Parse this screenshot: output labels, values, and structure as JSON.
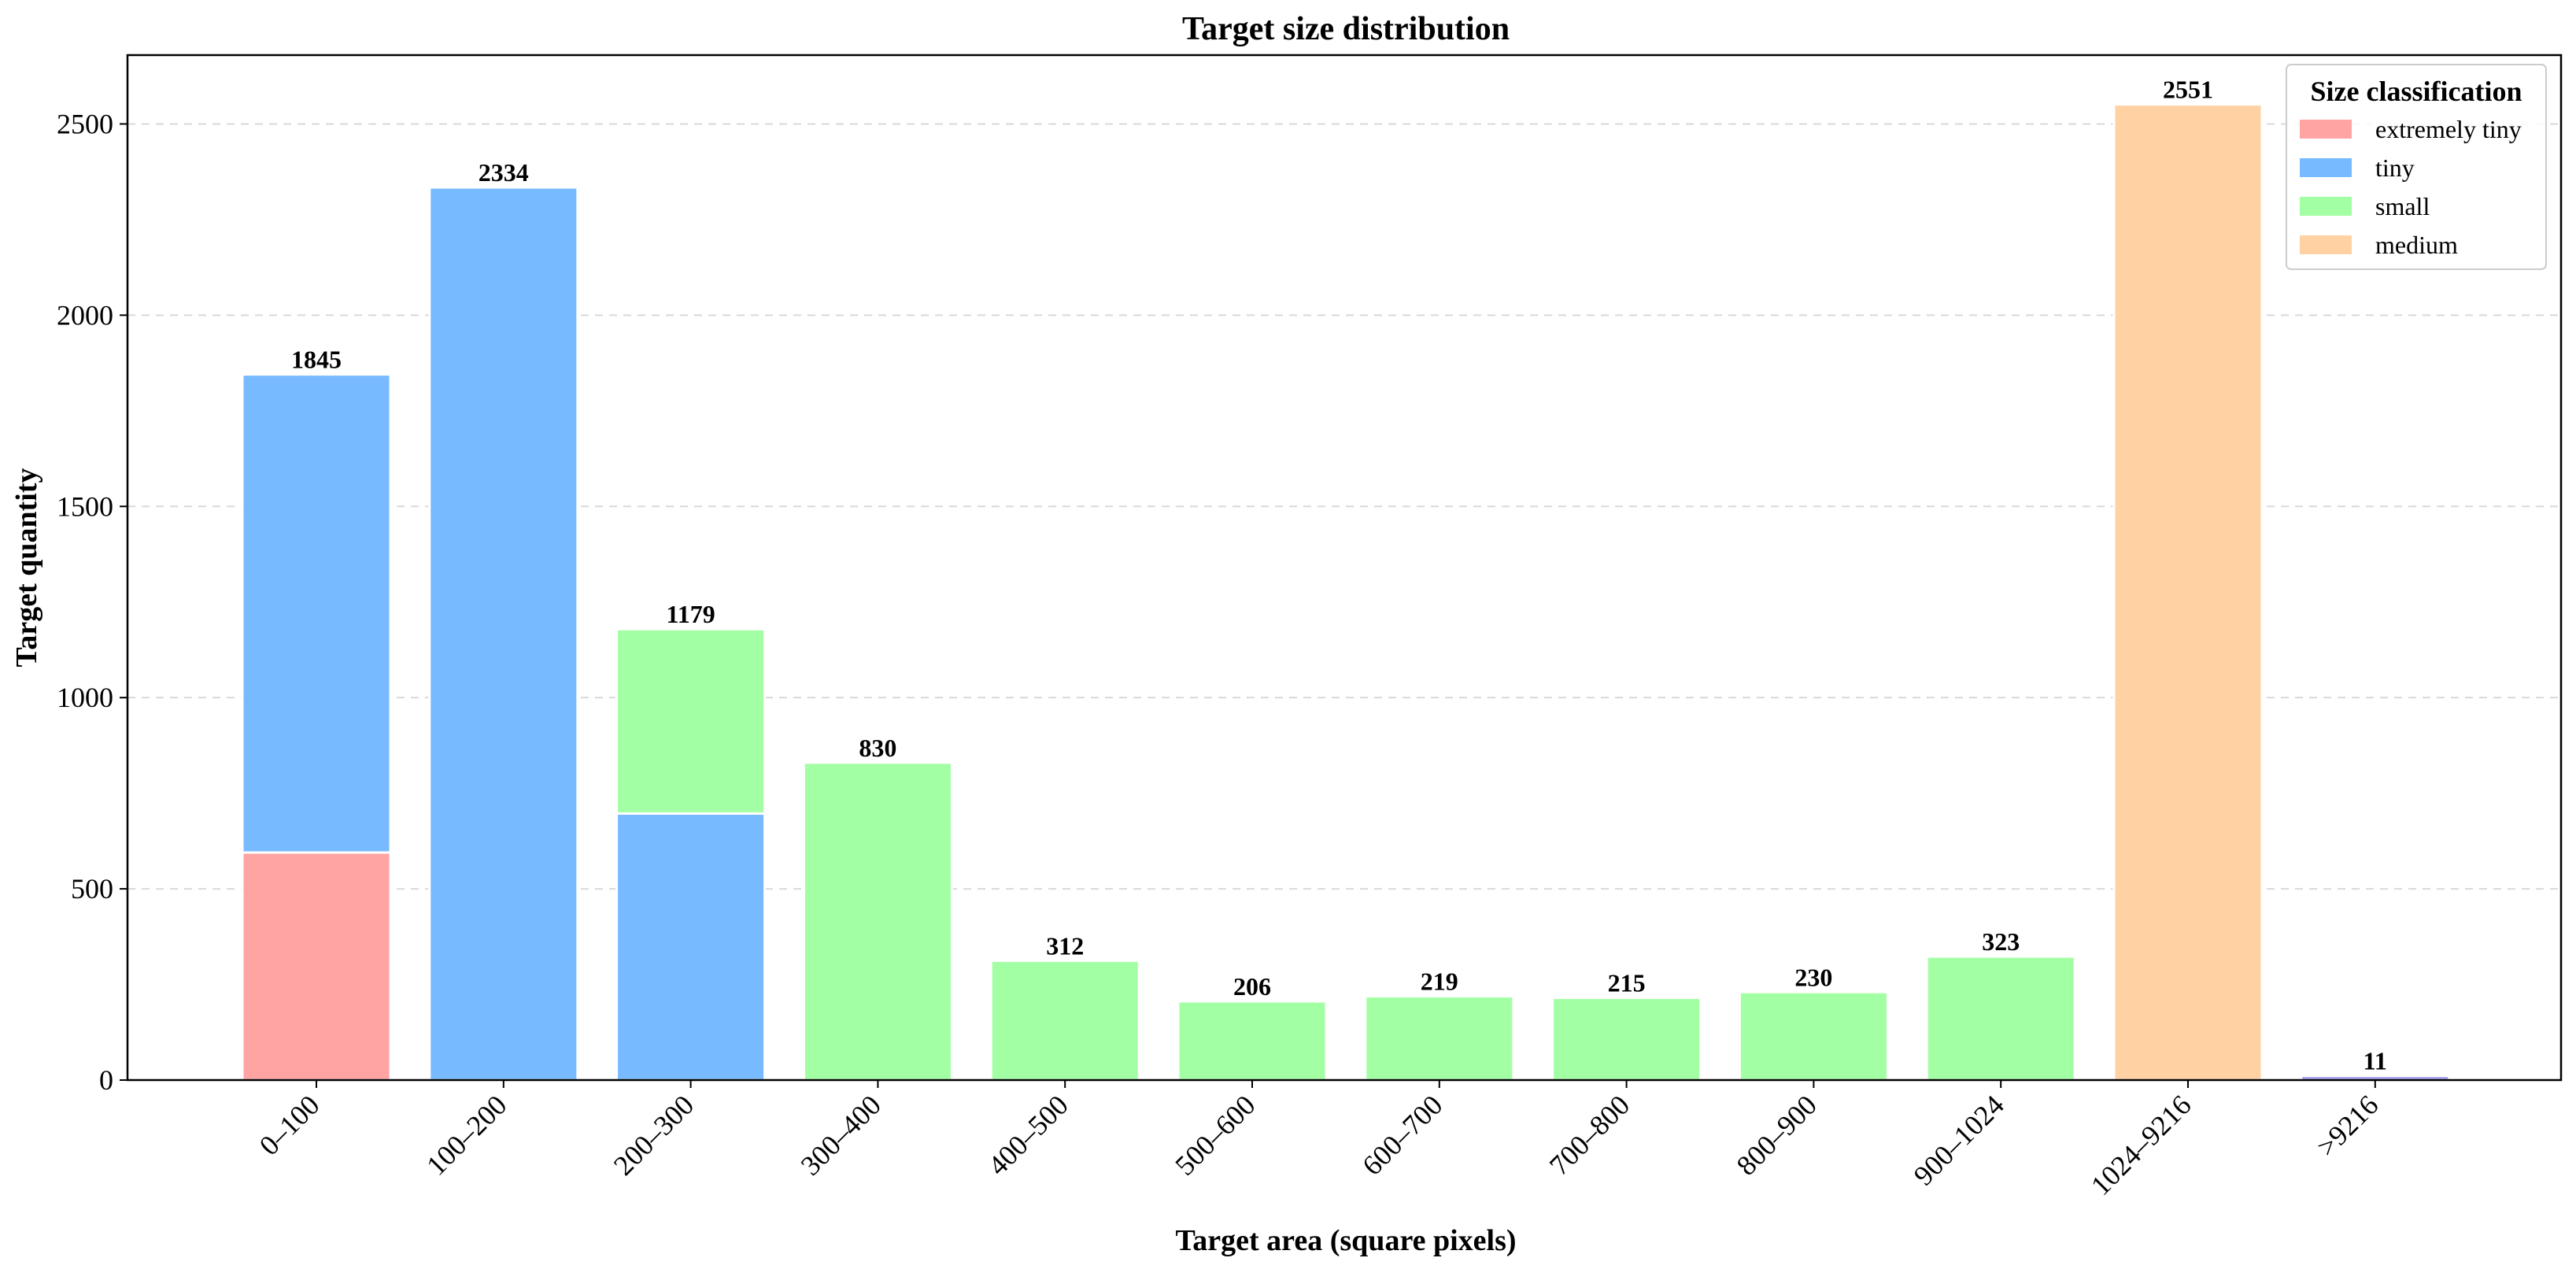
{
  "chart_data": {
    "type": "bar",
    "stacked": true,
    "title": "Target size distribution",
    "xlabel": "Target area (square pixels)",
    "ylabel": "Target quantity",
    "ylim": [
      0,
      2680
    ],
    "yticks": [
      0,
      500,
      1000,
      1500,
      2000,
      2500
    ],
    "grid": "horizontal dashed",
    "legend_title": "Size classification",
    "legend_position": "top-right",
    "categories": [
      "0–100",
      "100–200",
      "200–300",
      "300–400",
      "400–500",
      "500–600",
      "600–700",
      "700–800",
      "800–900",
      "900–1024",
      "1024–9216",
      ">9216"
    ],
    "series": [
      {
        "name": "extremely tiny",
        "color": "#ffa3a3",
        "values": [
          595,
          0,
          0,
          0,
          0,
          0,
          0,
          0,
          0,
          0,
          0,
          0
        ]
      },
      {
        "name": "tiny",
        "color": "#77baff",
        "values": [
          1250,
          2334,
          697,
          0,
          0,
          0,
          0,
          0,
          0,
          0,
          0,
          0
        ]
      },
      {
        "name": "small",
        "color": "#a3ffa3",
        "values": [
          0,
          0,
          482,
          830,
          312,
          206,
          219,
          215,
          230,
          323,
          0,
          0
        ]
      },
      {
        "name": "medium",
        "color": "#ffd1a3",
        "values": [
          0,
          0,
          0,
          0,
          0,
          0,
          0,
          0,
          0,
          0,
          2551,
          0
        ]
      },
      {
        "name": "",
        "color": "#9b9bf5",
        "values": [
          0,
          0,
          0,
          0,
          0,
          0,
          0,
          0,
          0,
          0,
          0,
          11
        ]
      }
    ],
    "totals": [
      1845,
      2334,
      1179,
      830,
      312,
      206,
      219,
      215,
      230,
      323,
      2551,
      11
    ]
  }
}
